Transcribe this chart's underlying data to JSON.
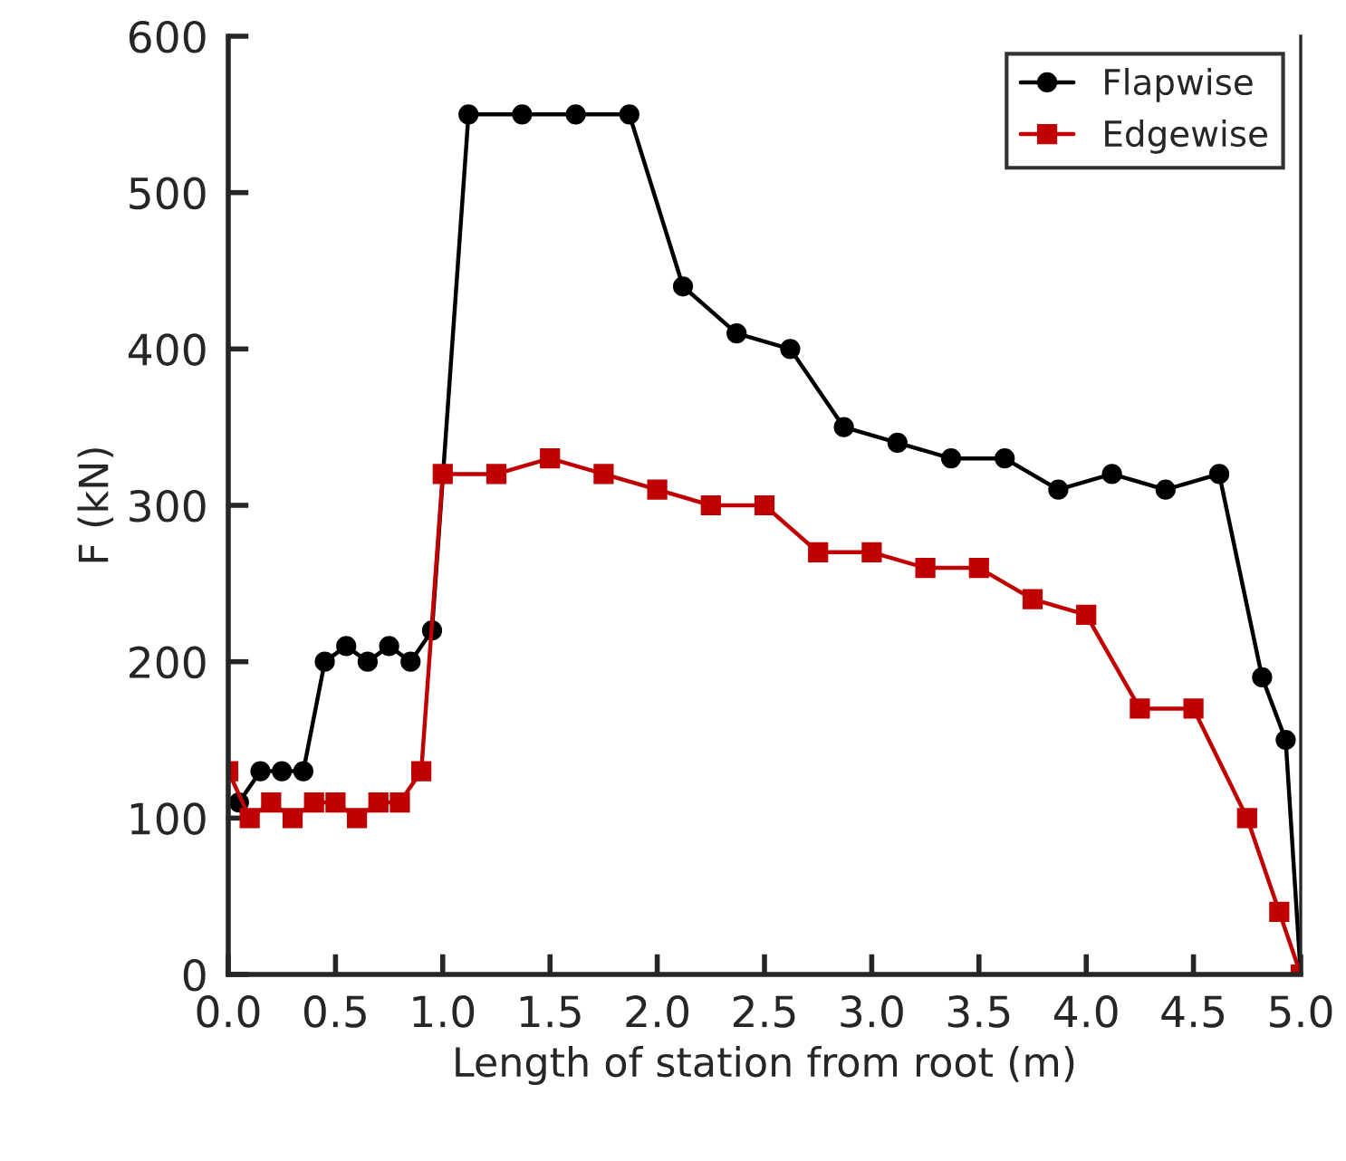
{
  "chart_data": {
    "type": "line",
    "xlabel": "Length of station from root (m)",
    "ylabel": "F (kN)",
    "xlim": [
      0,
      5
    ],
    "xticks": [
      {
        "value": 0,
        "label": "0.0"
      },
      {
        "value": 0.5,
        "label": "0.5"
      },
      {
        "value": 1,
        "label": "1.0"
      },
      {
        "value": 1.5,
        "label": "1.5"
      },
      {
        "value": 2,
        "label": "2.0"
      },
      {
        "value": 2.5,
        "label": "2.5"
      },
      {
        "value": 3,
        "label": "3.0"
      },
      {
        "value": 3.5,
        "label": "3.5"
      },
      {
        "value": 4,
        "label": "4.0"
      },
      {
        "value": 4.5,
        "label": "4.5"
      },
      {
        "value": 5,
        "label": "5.0"
      }
    ],
    "ylim": [
      0,
      600
    ],
    "yticks": [
      0,
      100,
      200,
      300,
      400,
      500,
      600
    ],
    "grid": false,
    "legend": "top right",
    "series": [
      {
        "name": "Flapwise",
        "color": "#000000",
        "marker": "circle",
        "x": [
          0.05,
          0.15,
          0.25,
          0.35,
          0.45,
          0.55,
          0.65,
          0.75,
          0.85,
          0.95,
          1.12,
          1.37,
          1.62,
          1.87,
          2.12,
          2.37,
          2.62,
          2.87,
          3.12,
          3.37,
          3.62,
          3.87,
          4.12,
          4.37,
          4.62,
          4.82,
          4.93,
          5.0
        ],
        "values": [
          110,
          130,
          130,
          130,
          200,
          210,
          200,
          210,
          200,
          220,
          550,
          550,
          550,
          550,
          440,
          410,
          400,
          350,
          340,
          330,
          330,
          310,
          320,
          310,
          320,
          190,
          150,
          0
        ]
      },
      {
        "name": "Edgewise",
        "color": "#c00000",
        "marker": "square",
        "x": [
          0,
          0.1,
          0.2,
          0.3,
          0.4,
          0.5,
          0.6,
          0.7,
          0.8,
          0.9,
          1.0,
          1.25,
          1.5,
          1.75,
          2.0,
          2.25,
          2.5,
          2.75,
          3.0,
          3.25,
          3.5,
          3.75,
          4.0,
          4.25,
          4.5,
          4.75,
          4.9,
          5.0
        ],
        "values": [
          130,
          100,
          110,
          100,
          110,
          110,
          100,
          110,
          110,
          130,
          320,
          320,
          330,
          320,
          310,
          300,
          300,
          270,
          270,
          260,
          260,
          240,
          230,
          170,
          170,
          100,
          40,
          0
        ]
      }
    ]
  }
}
